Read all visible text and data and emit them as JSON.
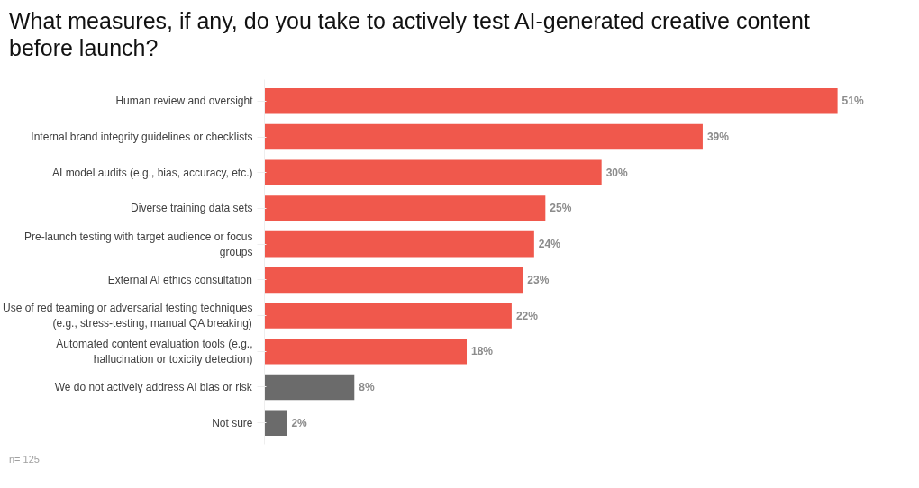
{
  "chart_data": {
    "type": "bar",
    "orientation": "horizontal",
    "title": "What measures, if any, do you take to actively test AI-generated creative content before launch?",
    "categories": [
      "Human review and oversight",
      "Internal brand integrity guidelines or checklists",
      "AI model audits (e.g., bias, accuracy, etc.)",
      "Diverse training data sets",
      "Pre-launch testing with target audience or focus groups",
      "External AI ethics consultation",
      "Use of red teaming or adversarial testing techniques (e.g., stress-testing, manual QA breaking)",
      "Automated content evaluation tools (e.g., hallucination or toxicity detection)",
      "We do not actively address AI bias or risk",
      "Not sure"
    ],
    "values": [
      51,
      39,
      30,
      25,
      24,
      23,
      22,
      18,
      8,
      2
    ],
    "colors": [
      "#f0584c",
      "#f0584c",
      "#f0584c",
      "#f0584c",
      "#f0584c",
      "#f0584c",
      "#f0584c",
      "#f0584c",
      "#6b6b6b",
      "#6b6b6b"
    ],
    "value_labels": [
      "51%",
      "39%",
      "30%",
      "25%",
      "24%",
      "23%",
      "22%",
      "18%",
      "8%",
      "2%"
    ],
    "tick_labels": "y",
    "grid": false,
    "annotations": [
      "n= 125"
    ]
  }
}
